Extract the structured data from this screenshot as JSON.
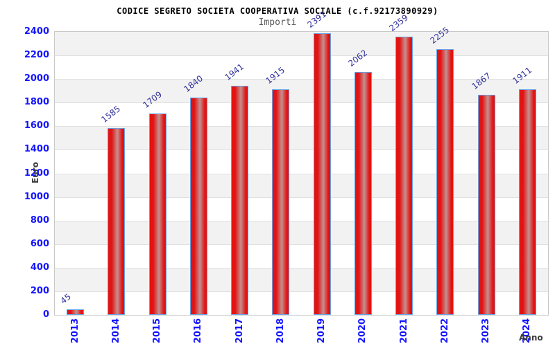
{
  "chart_data": {
    "type": "bar",
    "title": "CODICE SEGRETO SOCIETA COOPERATIVA SOCIALE (c.f.92173890929)",
    "subtitle": "Importi",
    "xlabel": "Anno",
    "ylabel": "Euro",
    "categories": [
      "2013",
      "2014",
      "2015",
      "2016",
      "2017",
      "2018",
      "2019",
      "2020",
      "2021",
      "2022",
      "2023",
      "2024"
    ],
    "values": [
      45,
      1585,
      1709,
      1840,
      1941,
      1915,
      2391,
      2062,
      2359,
      2255,
      1867,
      1911
    ],
    "ylim": [
      0,
      2400
    ],
    "ytick_step": 200,
    "ytick_labels": [
      "0",
      "200",
      "400",
      "600",
      "800",
      "1000",
      "1200",
      "1400",
      "1600",
      "1800",
      "2000",
      "2200",
      "2400"
    ],
    "grid": true,
    "legend_position": "none",
    "background_bands": "alternating gray/white per 200 units, gray at top",
    "colors": {
      "bar_fill": "#e11414",
      "bar_highlight": "#c59090",
      "bar_border": "#68a3e6",
      "axis_tick_label": "#1414ff",
      "value_label": "#31319c",
      "band_gray": "#f2f2f2",
      "gridline": "#e0e0e0",
      "plot_border": "#c9c9c9",
      "title": "#000000",
      "subtitle": "#5a5a5a",
      "axis_title": "#3c3c3c",
      "background": "#ffffff"
    }
  }
}
